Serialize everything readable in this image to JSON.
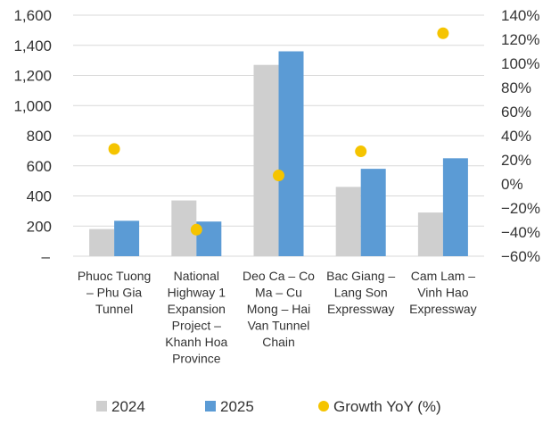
{
  "chart_data": {
    "type": "bar",
    "categories": [
      [
        "Phuoc Tuong",
        "– Phu Gia",
        "Tunnel"
      ],
      [
        "National",
        "Highway 1",
        "Expansion",
        "Project –",
        "Khanh Hoa",
        "Province"
      ],
      [
        "Deo Ca – Co",
        "Ma – Cu",
        "Mong – Hai",
        "Van Tunnel",
        "Chain"
      ],
      [
        "Bac Giang –",
        "Lang Son",
        "Expressway"
      ],
      [
        "Cam Lam –",
        "Vinh Hao",
        "Expressway"
      ]
    ],
    "series": [
      {
        "name": "2024",
        "type": "bar",
        "axis": "left",
        "color": "#cfcfcf",
        "values": [
          180,
          370,
          1270,
          460,
          290
        ]
      },
      {
        "name": "2025",
        "type": "bar",
        "axis": "left",
        "color": "#5b9bd5",
        "values": [
          235,
          230,
          1360,
          580,
          650
        ]
      },
      {
        "name": "Growth YoY (%)",
        "type": "scatter",
        "axis": "right",
        "color": "#f5c400",
        "values": [
          29,
          -38,
          7,
          27,
          125
        ]
      }
    ],
    "y_left": {
      "ylim": [
        0,
        1600
      ],
      "ticks": [
        0,
        200,
        400,
        600,
        800,
        1000,
        1200,
        1400,
        1600
      ],
      "tick_labels": [
        "–",
        "200",
        "400",
        "600",
        "800",
        "1,000",
        "1,200",
        "1,400",
        "1,600"
      ]
    },
    "y_right": {
      "ylim": [
        -60,
        140
      ],
      "ticks": [
        -60,
        -40,
        -20,
        0,
        20,
        40,
        60,
        80,
        100,
        120,
        140
      ],
      "tick_labels": [
        "−60%",
        "−40%",
        "−20%",
        "0%",
        "20%",
        "40%",
        "60%",
        "80%",
        "100%",
        "120%",
        "140%"
      ]
    },
    "grid": true,
    "legend_position": "bottom"
  }
}
